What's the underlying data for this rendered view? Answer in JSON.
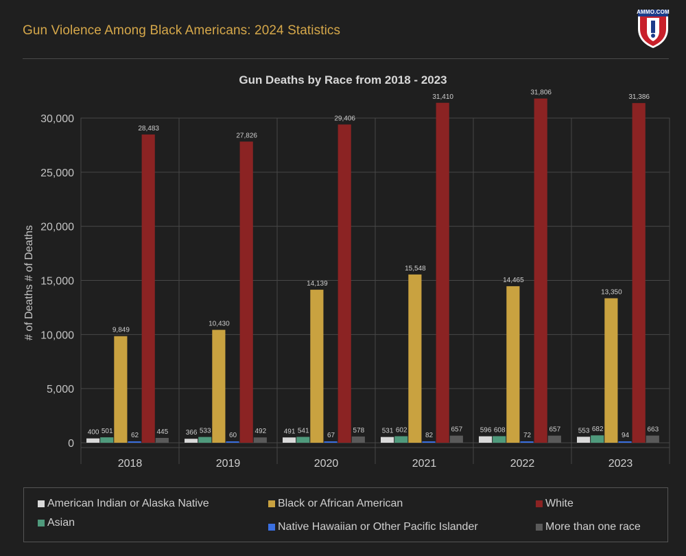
{
  "header": {
    "title": "Gun Violence Among Black Americans: 2024 Statistics",
    "logo_text": "AMMO.COM"
  },
  "chart_data": {
    "type": "bar",
    "title": "Gun Deaths by Race from 2018 - 2023",
    "xlabel": "",
    "ylabel": "# of Deaths  # of Deaths",
    "ylim": [
      0,
      30000
    ],
    "yticks": [
      "0",
      "5,000",
      "10,000",
      "15,000",
      "20,000",
      "25,000",
      "30,000"
    ],
    "grid": true,
    "legend_position": "bottom",
    "categories": [
      "2018",
      "2019",
      "2020",
      "2021",
      "2022",
      "2023"
    ],
    "series": [
      {
        "name": "American Indian or Alaska Native",
        "color": "#d9d9d9",
        "values": [
          400,
          366,
          491,
          531,
          596,
          553
        ],
        "labels": [
          "400",
          "366",
          "491",
          "531",
          "596",
          "553"
        ]
      },
      {
        "name": "Asian",
        "color": "#4f9a7c",
        "values": [
          501,
          533,
          541,
          602,
          608,
          682
        ],
        "labels": [
          "501",
          "533",
          "541",
          "602",
          "608",
          "682"
        ]
      },
      {
        "name": "Black or African American",
        "color": "#c9a240",
        "values": [
          9849,
          10430,
          14139,
          15548,
          14465,
          13350
        ],
        "labels": [
          "9,849",
          "10,430",
          "14,139",
          "15,548",
          "14,465",
          "13,350"
        ]
      },
      {
        "name": "Native Hawaiian or Other Pacific Islander",
        "color": "#3a6fe0",
        "values": [
          62,
          60,
          67,
          82,
          72,
          94
        ],
        "labels": [
          "62",
          "60",
          "67",
          "82",
          "72",
          "94"
        ]
      },
      {
        "name": "White",
        "color": "#8b2323",
        "values": [
          28483,
          27826,
          29406,
          31410,
          31806,
          31386
        ],
        "labels": [
          "28,483",
          "27,826",
          "29,406",
          "31,410",
          "31,806",
          "31,386"
        ]
      },
      {
        "name": "More than one race",
        "color": "#5a5a5a",
        "values": [
          445,
          492,
          578,
          657,
          657,
          663
        ],
        "labels": [
          "445",
          "492",
          "578",
          "657",
          "657",
          "663"
        ]
      }
    ]
  },
  "legend": [
    {
      "label": "American Indian or Alaska Native",
      "color": "#d9d9d9"
    },
    {
      "label": "Asian",
      "color": "#4f9a7c"
    },
    {
      "label": "Black or African American",
      "color": "#c9a240"
    },
    {
      "label": "Native Hawaiian or Other Pacific Islander",
      "color": "#3a6fe0"
    },
    {
      "label": "White",
      "color": "#8b2323"
    },
    {
      "label": "More than one race",
      "color": "#5a5a5a"
    }
  ]
}
